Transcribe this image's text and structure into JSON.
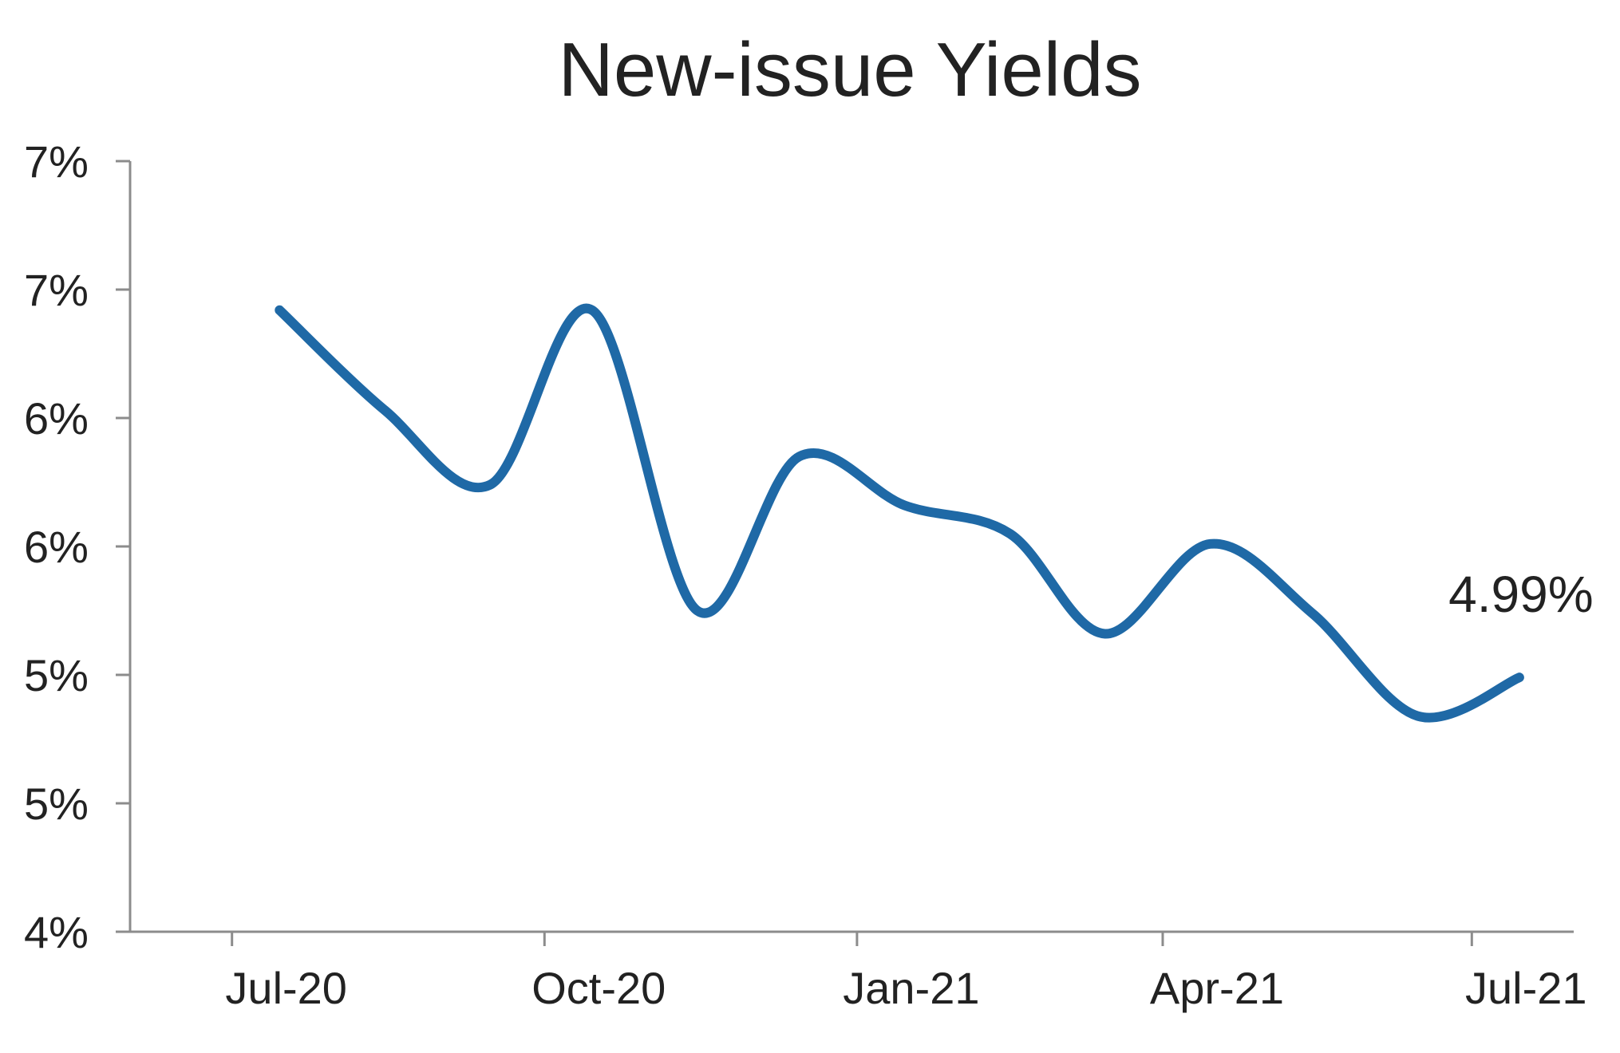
{
  "chart_data": {
    "type": "line",
    "title": "New-issue Yields",
    "xlabel": "",
    "ylabel": "",
    "grid": false,
    "legend": "none",
    "x_range": [
      "2020-06-01",
      "2021-07-31"
    ],
    "y_range": [
      4.0,
      7.0
    ],
    "x_ticks": [
      {
        "date": "2020-07-01",
        "label": "Jul-20"
      },
      {
        "date": "2020-10-01",
        "label": "Oct-20"
      },
      {
        "date": "2021-01-01",
        "label": "Jan-21"
      },
      {
        "date": "2021-04-01",
        "label": "Apr-21"
      },
      {
        "date": "2021-07-01",
        "label": "Jul-21"
      }
    ],
    "y_ticks": [
      {
        "value": 4.0,
        "label": "4%"
      },
      {
        "value": 4.5,
        "label": "5%"
      },
      {
        "value": 5.0,
        "label": "5%"
      },
      {
        "value": 5.5,
        "label": "6%"
      },
      {
        "value": 6.0,
        "label": "6%"
      },
      {
        "value": 6.5,
        "label": "7%"
      },
      {
        "value": 7.0,
        "label": "7%"
      }
    ],
    "series": [
      {
        "color": "#1f69a6",
        "points": [
          {
            "date": "2020-07-15",
            "value": 6.42
          },
          {
            "date": "2020-08-15",
            "value": 6.03
          },
          {
            "date": "2020-09-15",
            "value": 5.74
          },
          {
            "date": "2020-10-15",
            "value": 6.42
          },
          {
            "date": "2020-11-15",
            "value": 5.25
          },
          {
            "date": "2020-12-15",
            "value": 5.85
          },
          {
            "date": "2021-01-15",
            "value": 5.66
          },
          {
            "date": "2021-02-15",
            "value": 5.55
          },
          {
            "date": "2021-03-15",
            "value": 5.16
          },
          {
            "date": "2021-04-15",
            "value": 5.51
          },
          {
            "date": "2021-05-15",
            "value": 5.24
          },
          {
            "date": "2021-06-15",
            "value": 4.84
          },
          {
            "date": "2021-07-15",
            "value": 4.99
          }
        ]
      }
    ],
    "annotations": [
      {
        "text": "4.99%",
        "date": "2021-07-15",
        "value": 4.99
      }
    ]
  }
}
